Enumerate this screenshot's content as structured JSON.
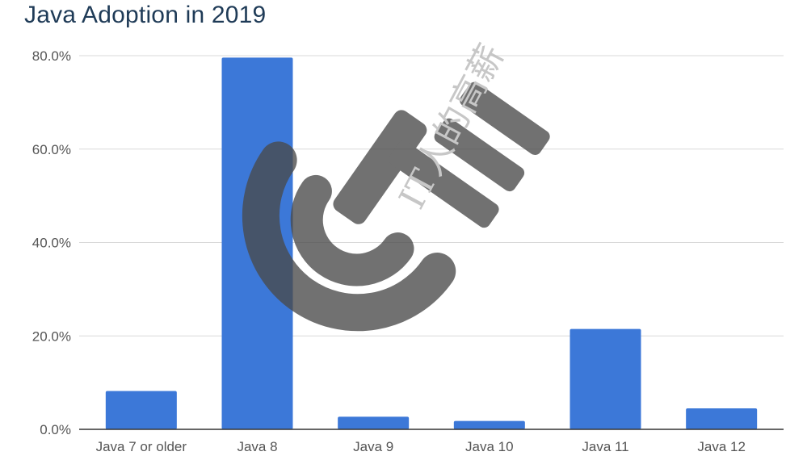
{
  "chart_data": {
    "type": "bar",
    "title": "Java Adoption in 2019",
    "xlabel": "",
    "ylabel": "",
    "categories": [
      "Java 7 or older",
      "Java 8",
      "Java 9",
      "Java 10",
      "Java 11",
      "Java 12"
    ],
    "values": [
      8.2,
      79.6,
      2.7,
      1.8,
      21.5,
      4.5
    ],
    "value_format": "percent",
    "ylim": [
      0,
      80
    ],
    "yticks": [
      "0.0%",
      "20.0%",
      "40.0%",
      "60.0%",
      "80.0%"
    ],
    "ytick_values": [
      0,
      20,
      40,
      60,
      80
    ],
    "grid": true,
    "legend": "none",
    "bar_color": "#3c78d8"
  },
  "watermark": {
    "text": "IT人的高薪",
    "logo_color": "#4a4a4a"
  }
}
